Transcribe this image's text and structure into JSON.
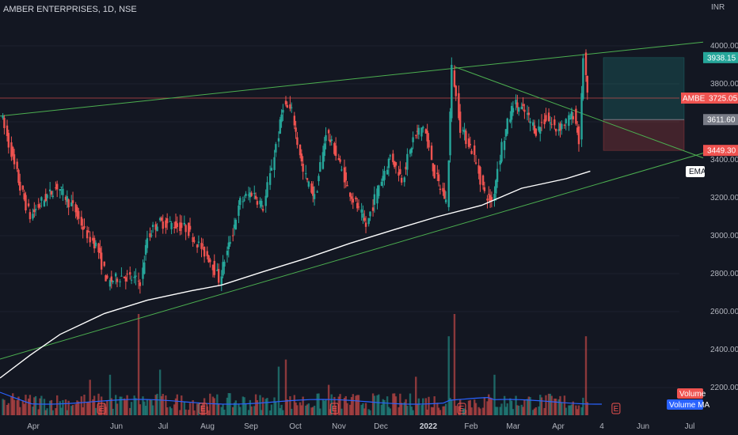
{
  "header": {
    "title": "AMBER ENTERPRISES, 1D, NSE",
    "currency": "INR"
  },
  "colors": {
    "bg": "#131722",
    "up": "#26a69a",
    "down": "#ef5350",
    "trend": "#4caf50",
    "ema": "#ffffff",
    "vol_ma": "#2962ff",
    "grid": "#1e222d"
  },
  "chart_data": {
    "type": "candlestick",
    "symbol": "AMBER ENTERPRISES",
    "interval": "1D",
    "exchange": "NSE",
    "y_axis": {
      "range": [
        2050,
        4250
      ],
      "ticks": [
        2200,
        2400,
        2600,
        2800,
        3000,
        3200,
        3400,
        3600,
        3800,
        4000
      ],
      "tick_labels": [
        "2200.00",
        "2400.00",
        "2600.00",
        "2800.00",
        "3000.00",
        "3200.00",
        "3400.00",
        "3600.00",
        "3800.00",
        "4000.00"
      ]
    },
    "x_axis": {
      "labels": [
        "Apr",
        "Jun",
        "Jul",
        "Aug",
        "Sep",
        "Oct",
        "Nov",
        "Dec",
        "2022",
        "Feb",
        "Mar",
        "Apr",
        "4",
        "Jun",
        "Jul"
      ]
    },
    "price_path": [
      {
        "d": "2021-03-22",
        "price": 3650
      },
      {
        "d": "2021-03-28",
        "price": 3480
      },
      {
        "d": "2021-04-05",
        "price": 3250
      },
      {
        "d": "2021-04-12",
        "price": 3100
      },
      {
        "d": "2021-04-20",
        "price": 3180
      },
      {
        "d": "2021-05-01",
        "price": 3260
      },
      {
        "d": "2021-05-12",
        "price": 3150
      },
      {
        "d": "2021-05-20",
        "price": 3020
      },
      {
        "d": "2021-05-28",
        "price": 2950
      },
      {
        "d": "2021-06-05",
        "price": 2750
      },
      {
        "d": "2021-06-15",
        "price": 2790
      },
      {
        "d": "2021-06-28",
        "price": 2760
      },
      {
        "d": "2021-07-03",
        "price": 2990
      },
      {
        "d": "2021-07-10",
        "price": 3070
      },
      {
        "d": "2021-07-20",
        "price": 3060
      },
      {
        "d": "2021-07-30",
        "price": 3040
      },
      {
        "d": "2021-08-08",
        "price": 2950
      },
      {
        "d": "2021-08-16",
        "price": 2870
      },
      {
        "d": "2021-08-22",
        "price": 2770
      },
      {
        "d": "2021-08-30",
        "price": 2980
      },
      {
        "d": "2021-09-06",
        "price": 3180
      },
      {
        "d": "2021-09-14",
        "price": 3230
      },
      {
        "d": "2021-09-22",
        "price": 3150
      },
      {
        "d": "2021-10-01",
        "price": 3480
      },
      {
        "d": "2021-10-06",
        "price": 3690
      },
      {
        "d": "2021-10-12",
        "price": 3650
      },
      {
        "d": "2021-10-20",
        "price": 3330
      },
      {
        "d": "2021-10-28",
        "price": 3200
      },
      {
        "d": "2021-11-05",
        "price": 3550
      },
      {
        "d": "2021-11-12",
        "price": 3430
      },
      {
        "d": "2021-11-20",
        "price": 3250
      },
      {
        "d": "2021-11-28",
        "price": 3130
      },
      {
        "d": "2021-12-03",
        "price": 3050
      },
      {
        "d": "2021-12-12",
        "price": 3270
      },
      {
        "d": "2021-12-20",
        "price": 3420
      },
      {
        "d": "2021-12-28",
        "price": 3300
      },
      {
        "d": "2022-01-05",
        "price": 3510
      },
      {
        "d": "2022-01-12",
        "price": 3580
      },
      {
        "d": "2022-01-20",
        "price": 3320
      },
      {
        "d": "2022-01-28",
        "price": 3180
      },
      {
        "d": "2022-02-01",
        "price": 3880
      },
      {
        "d": "2022-02-07",
        "price": 3570
      },
      {
        "d": "2022-02-15",
        "price": 3450
      },
      {
        "d": "2022-02-24",
        "price": 3220
      },
      {
        "d": "2022-03-01",
        "price": 3180
      },
      {
        "d": "2022-03-08",
        "price": 3480
      },
      {
        "d": "2022-03-16",
        "price": 3700
      },
      {
        "d": "2022-03-24",
        "price": 3650
      },
      {
        "d": "2022-04-01",
        "price": 3550
      },
      {
        "d": "2022-04-08",
        "price": 3620
      },
      {
        "d": "2022-04-15",
        "price": 3560
      },
      {
        "d": "2022-04-22",
        "price": 3600
      },
      {
        "d": "2022-04-27",
        "price": 3640
      },
      {
        "d": "2022-05-01",
        "price": 3500
      },
      {
        "d": "2022-05-04",
        "price": 3950
      },
      {
        "d": "2022-05-07",
        "price": 3725
      }
    ],
    "price_labels": [
      {
        "name": "target",
        "value": "3938.15",
        "color": "#26a69a"
      },
      {
        "name": "AMBER",
        "value": "3725.05",
        "color": "#ef5350"
      },
      {
        "name": "entry",
        "value": "3611.60",
        "color": "#787b86"
      },
      {
        "name": "stop",
        "value": "3449.30",
        "color": "#ef5350"
      }
    ],
    "position_tool": {
      "target": 3938.15,
      "entry": 3611.6,
      "stop": 3449.3
    },
    "trendlines": [
      {
        "name": "upper-channel",
        "from": {
          "d": "2021-03-20",
          "price": 3630
        },
        "to": {
          "d": "2022-07-25",
          "price": 4020
        }
      },
      {
        "name": "lower-channel",
        "from": {
          "d": "2021-03-20",
          "price": 2350
        },
        "to": {
          "d": "2022-07-25",
          "price": 3435
        }
      },
      {
        "name": "descending",
        "from": {
          "d": "2022-02-01",
          "price": 3890
        },
        "to": {
          "d": "2022-07-25",
          "price": 3410
        }
      }
    ],
    "horizontal_line": 3725.05,
    "ema_path": [
      {
        "d": "2021-03-20",
        "price": 2250
      },
      {
        "d": "2021-04-10",
        "price": 2370
      },
      {
        "d": "2021-05-01",
        "price": 2480
      },
      {
        "d": "2021-06-01",
        "price": 2590
      },
      {
        "d": "2021-07-01",
        "price": 2660
      },
      {
        "d": "2021-08-01",
        "price": 2710
      },
      {
        "d": "2021-08-22",
        "price": 2740
      },
      {
        "d": "2021-09-20",
        "price": 2810
      },
      {
        "d": "2021-10-20",
        "price": 2880
      },
      {
        "d": "2021-11-20",
        "price": 2960
      },
      {
        "d": "2021-12-20",
        "price": 3030
      },
      {
        "d": "2022-01-20",
        "price": 3100
      },
      {
        "d": "2022-02-20",
        "price": 3160
      },
      {
        "d": "2022-03-20",
        "price": 3250
      },
      {
        "d": "2022-04-20",
        "price": 3300
      },
      {
        "d": "2022-05-07",
        "price": 3340
      }
    ],
    "volume_spikes": [
      {
        "d": "2021-06-25",
        "rel": 1.0
      },
      {
        "d": "2022-02-01",
        "rel": 1.0
      },
      {
        "d": "2022-01-28",
        "rel": 0.78
      },
      {
        "d": "2022-05-04",
        "rel": 0.78
      },
      {
        "d": "2021-07-10",
        "rel": 0.45
      },
      {
        "d": "2021-06-05",
        "rel": 0.4
      },
      {
        "d": "2021-10-01",
        "rel": 0.48
      },
      {
        "d": "2021-10-06",
        "rel": 0.55
      },
      {
        "d": "2021-05-22",
        "rel": 0.35
      },
      {
        "d": "2022-01-05",
        "rel": 0.38
      },
      {
        "d": "2021-12-08",
        "rel": 0.33
      },
      {
        "d": "2022-03-01",
        "rel": 0.4
      },
      {
        "d": "2021-09-05",
        "rel": 0.32
      },
      {
        "d": "2021-11-05",
        "rel": 0.3
      }
    ],
    "earnings_markers": [
      "2021-05-30",
      "2021-08-09",
      "2021-11-09",
      "2022-02-06",
      "2022-05-25"
    ],
    "indicator_labels": {
      "ema": "EMA",
      "volume": "Volume",
      "volume_ma": "Volume MA",
      "earnings": "E"
    }
  }
}
